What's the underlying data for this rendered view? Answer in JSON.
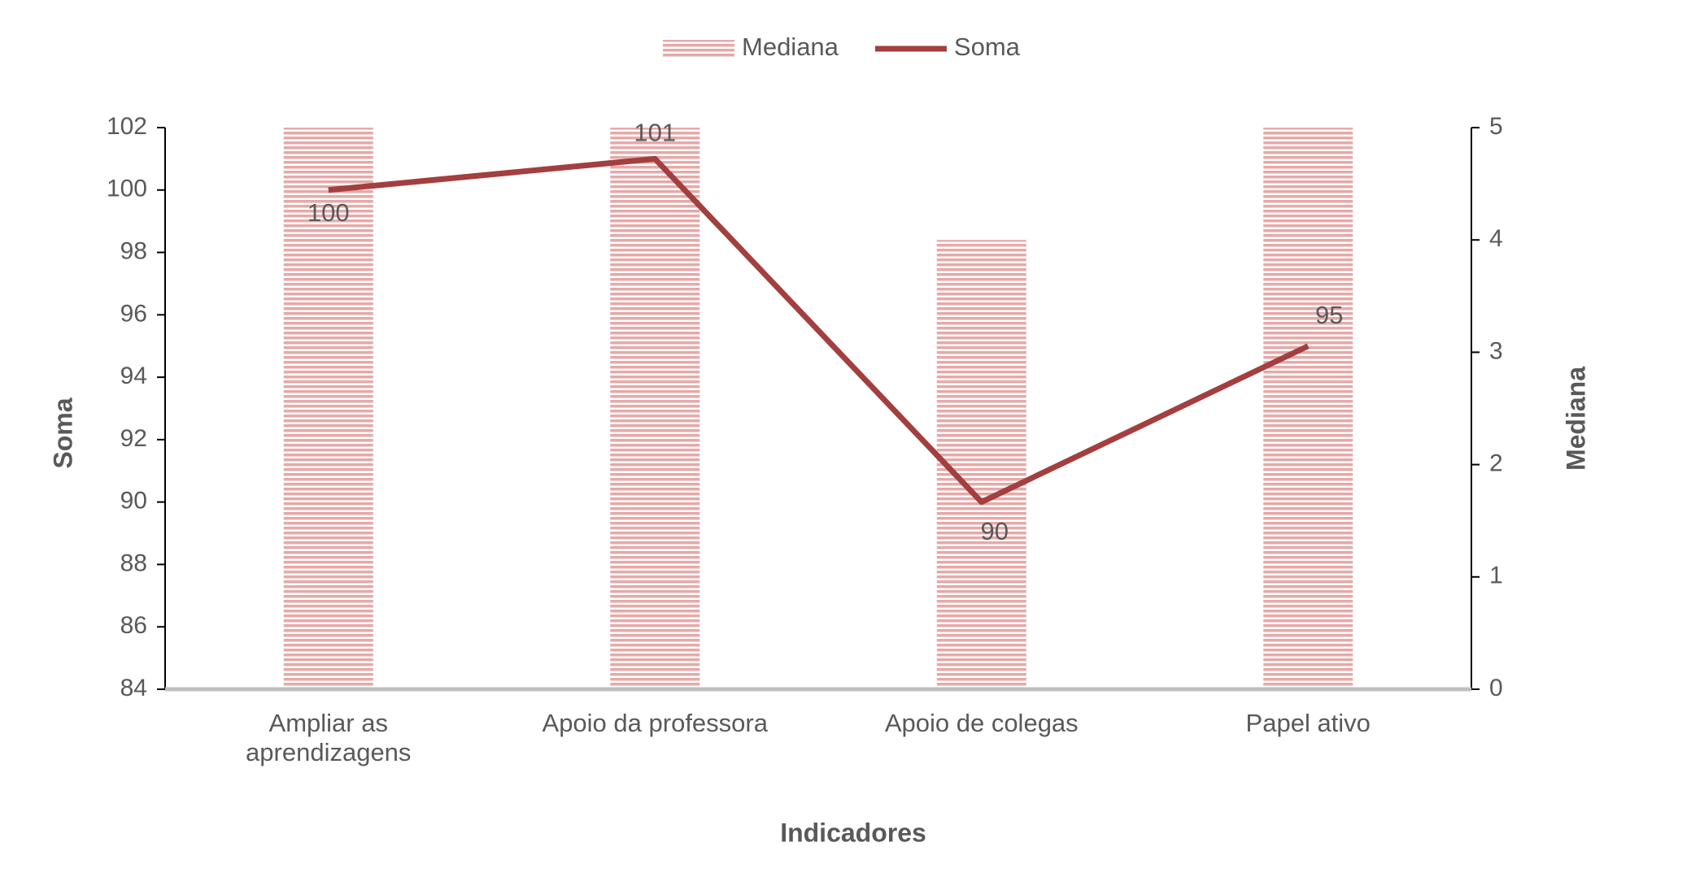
{
  "chart_data": {
    "type": "combo",
    "x_label": "Indicadores",
    "y_label": "Soma",
    "y2_label": "Mediana",
    "categories": [
      "Ampliar as aprendizagens",
      "Apoio da professora",
      "Apoio de colegas",
      "Papel ativo"
    ],
    "series": [
      {
        "name": "Mediana",
        "type": "bar",
        "axis": "y2",
        "color": "#e6a9a9",
        "values": [
          5,
          5,
          4,
          5
        ]
      },
      {
        "name": "Soma",
        "type": "line",
        "axis": "y",
        "color": "#a33f3f",
        "values": [
          100,
          101,
          90,
          95
        ]
      }
    ],
    "ylim": [
      84,
      102
    ],
    "yticks": [
      84,
      86,
      88,
      90,
      92,
      94,
      96,
      98,
      100,
      102
    ],
    "y2lim": [
      0,
      5
    ],
    "y2ticks": [
      0,
      1,
      2,
      3,
      4,
      5
    ],
    "legend": "top",
    "grid": false
  }
}
